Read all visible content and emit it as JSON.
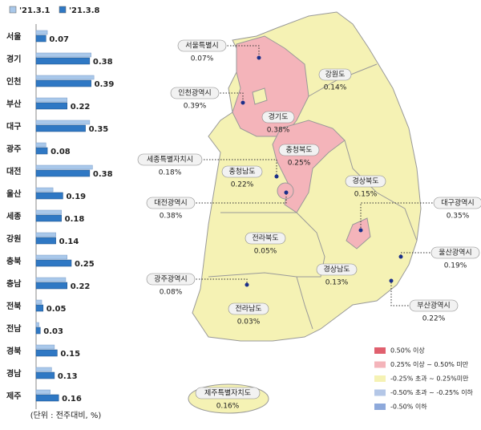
{
  "chart_data": {
    "type": "bar",
    "orientation": "horizontal",
    "categories": [
      "서울",
      "경기",
      "인천",
      "부산",
      "대구",
      "광주",
      "대전",
      "울산",
      "세종",
      "강원",
      "충북",
      "충남",
      "전북",
      "전남",
      "경북",
      "경남",
      "제주"
    ],
    "series": [
      {
        "name": "'21.3.1",
        "color": "#a9c8ea",
        "values": [
          0.08,
          0.39,
          0.41,
          0.22,
          0.38,
          0.07,
          0.4,
          0.12,
          0.18,
          0.14,
          0.22,
          0.21,
          0.04,
          0.02,
          0.13,
          0.11,
          0.1
        ]
      },
      {
        "name": "'21.3.8",
        "color": "#2f78c4",
        "values": [
          0.07,
          0.38,
          0.39,
          0.22,
          0.35,
          0.08,
          0.38,
          0.19,
          0.18,
          0.14,
          0.25,
          0.22,
          0.05,
          0.03,
          0.15,
          0.13,
          0.16
        ]
      }
    ],
    "note": "(단위 : 전주대비, %)"
  },
  "map": {
    "regions": [
      {
        "name": "서울특별시",
        "value": "0.07%"
      },
      {
        "name": "경기도",
        "value": "0.38%"
      },
      {
        "name": "강원도",
        "value": "0.14%"
      },
      {
        "name": "인천광역시",
        "value": "0.39%"
      },
      {
        "name": "충청북도",
        "value": "0.25%"
      },
      {
        "name": "세종특별자치시",
        "value": "0.18%"
      },
      {
        "name": "충청남도",
        "value": "0.22%"
      },
      {
        "name": "대전광역시",
        "value": "0.38%"
      },
      {
        "name": "경상북도",
        "value": "0.15%"
      },
      {
        "name": "대구광역시",
        "value": "0.35%"
      },
      {
        "name": "전라북도",
        "value": "0.05%"
      },
      {
        "name": "울산광역시",
        "value": "0.19%"
      },
      {
        "name": "광주광역시",
        "value": "0.08%"
      },
      {
        "name": "경상남도",
        "value": "0.13%"
      },
      {
        "name": "부산광역시",
        "value": "0.22%"
      },
      {
        "name": "전라남도",
        "value": "0.03%"
      },
      {
        "name": "제주특별자치도",
        "value": "0.16%"
      }
    ],
    "legend": [
      {
        "label": "0.50% 이상",
        "color": "#e0606e"
      },
      {
        "label": "0.25% 이상 ~ 0.50% 미만",
        "color": "#f4b4ba"
      },
      {
        "label": "-0.25% 초과 ~ 0.25%미만",
        "color": "#f5f2b4"
      },
      {
        "label": "-0.50% 초과 ~ -0.25% 이하",
        "color": "#b4c7e7"
      },
      {
        "label": "-0.50% 이하",
        "color": "#8ea9db"
      }
    ]
  }
}
